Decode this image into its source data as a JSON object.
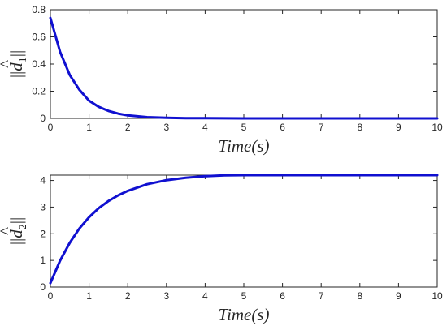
{
  "chart_data": [
    {
      "type": "line",
      "xlabel": "Time(s)",
      "ylabel": {
        "prefix": "||",
        "var": "d",
        "accent": "^",
        "sub": "1",
        "suffix": "||"
      },
      "xlim": [
        0,
        10
      ],
      "ylim": [
        0,
        0.8
      ],
      "xticks": [
        "0",
        "1",
        "2",
        "3",
        "4",
        "5",
        "6",
        "7",
        "8",
        "9",
        "10"
      ],
      "yticks": [
        "0",
        "0.2",
        "0.4",
        "0.6",
        "0.8"
      ],
      "grid": false,
      "line_color": "#1010d0",
      "series": [
        {
          "x": [
            0,
            0.25,
            0.5,
            0.75,
            1,
            1.25,
            1.5,
            1.75,
            2,
            2.5,
            3,
            3.5,
            4,
            5,
            6,
            7,
            8,
            9,
            10
          ],
          "values": [
            0.74,
            0.49,
            0.32,
            0.21,
            0.13,
            0.085,
            0.055,
            0.035,
            0.022,
            0.009,
            0.004,
            0.002,
            0.001,
            0,
            0,
            0,
            0,
            0,
            0
          ]
        }
      ]
    },
    {
      "type": "line",
      "xlabel": "Time(s)",
      "ylabel": {
        "prefix": "||",
        "var": "d",
        "accent": "^",
        "sub": "2",
        "suffix": "||"
      },
      "xlim": [
        0,
        10
      ],
      "ylim": [
        0,
        4.2
      ],
      "xticks": [
        "0",
        "1",
        "2",
        "3",
        "4",
        "5",
        "6",
        "7",
        "8",
        "9",
        "10"
      ],
      "yticks": [
        "0",
        "1",
        "2",
        "3",
        "4"
      ],
      "grid": false,
      "line_color": "#1010d0",
      "series": [
        {
          "x": [
            0,
            0.25,
            0.5,
            0.75,
            1,
            1.25,
            1.5,
            1.75,
            2,
            2.5,
            3,
            3.5,
            4,
            4.5,
            5,
            6,
            7,
            8,
            9,
            10
          ],
          "values": [
            0.15,
            0.99,
            1.66,
            2.2,
            2.62,
            2.96,
            3.23,
            3.44,
            3.61,
            3.86,
            4.01,
            4.1,
            4.16,
            4.19,
            4.2,
            4.2,
            4.2,
            4.2,
            4.2,
            4.2
          ]
        }
      ]
    }
  ]
}
